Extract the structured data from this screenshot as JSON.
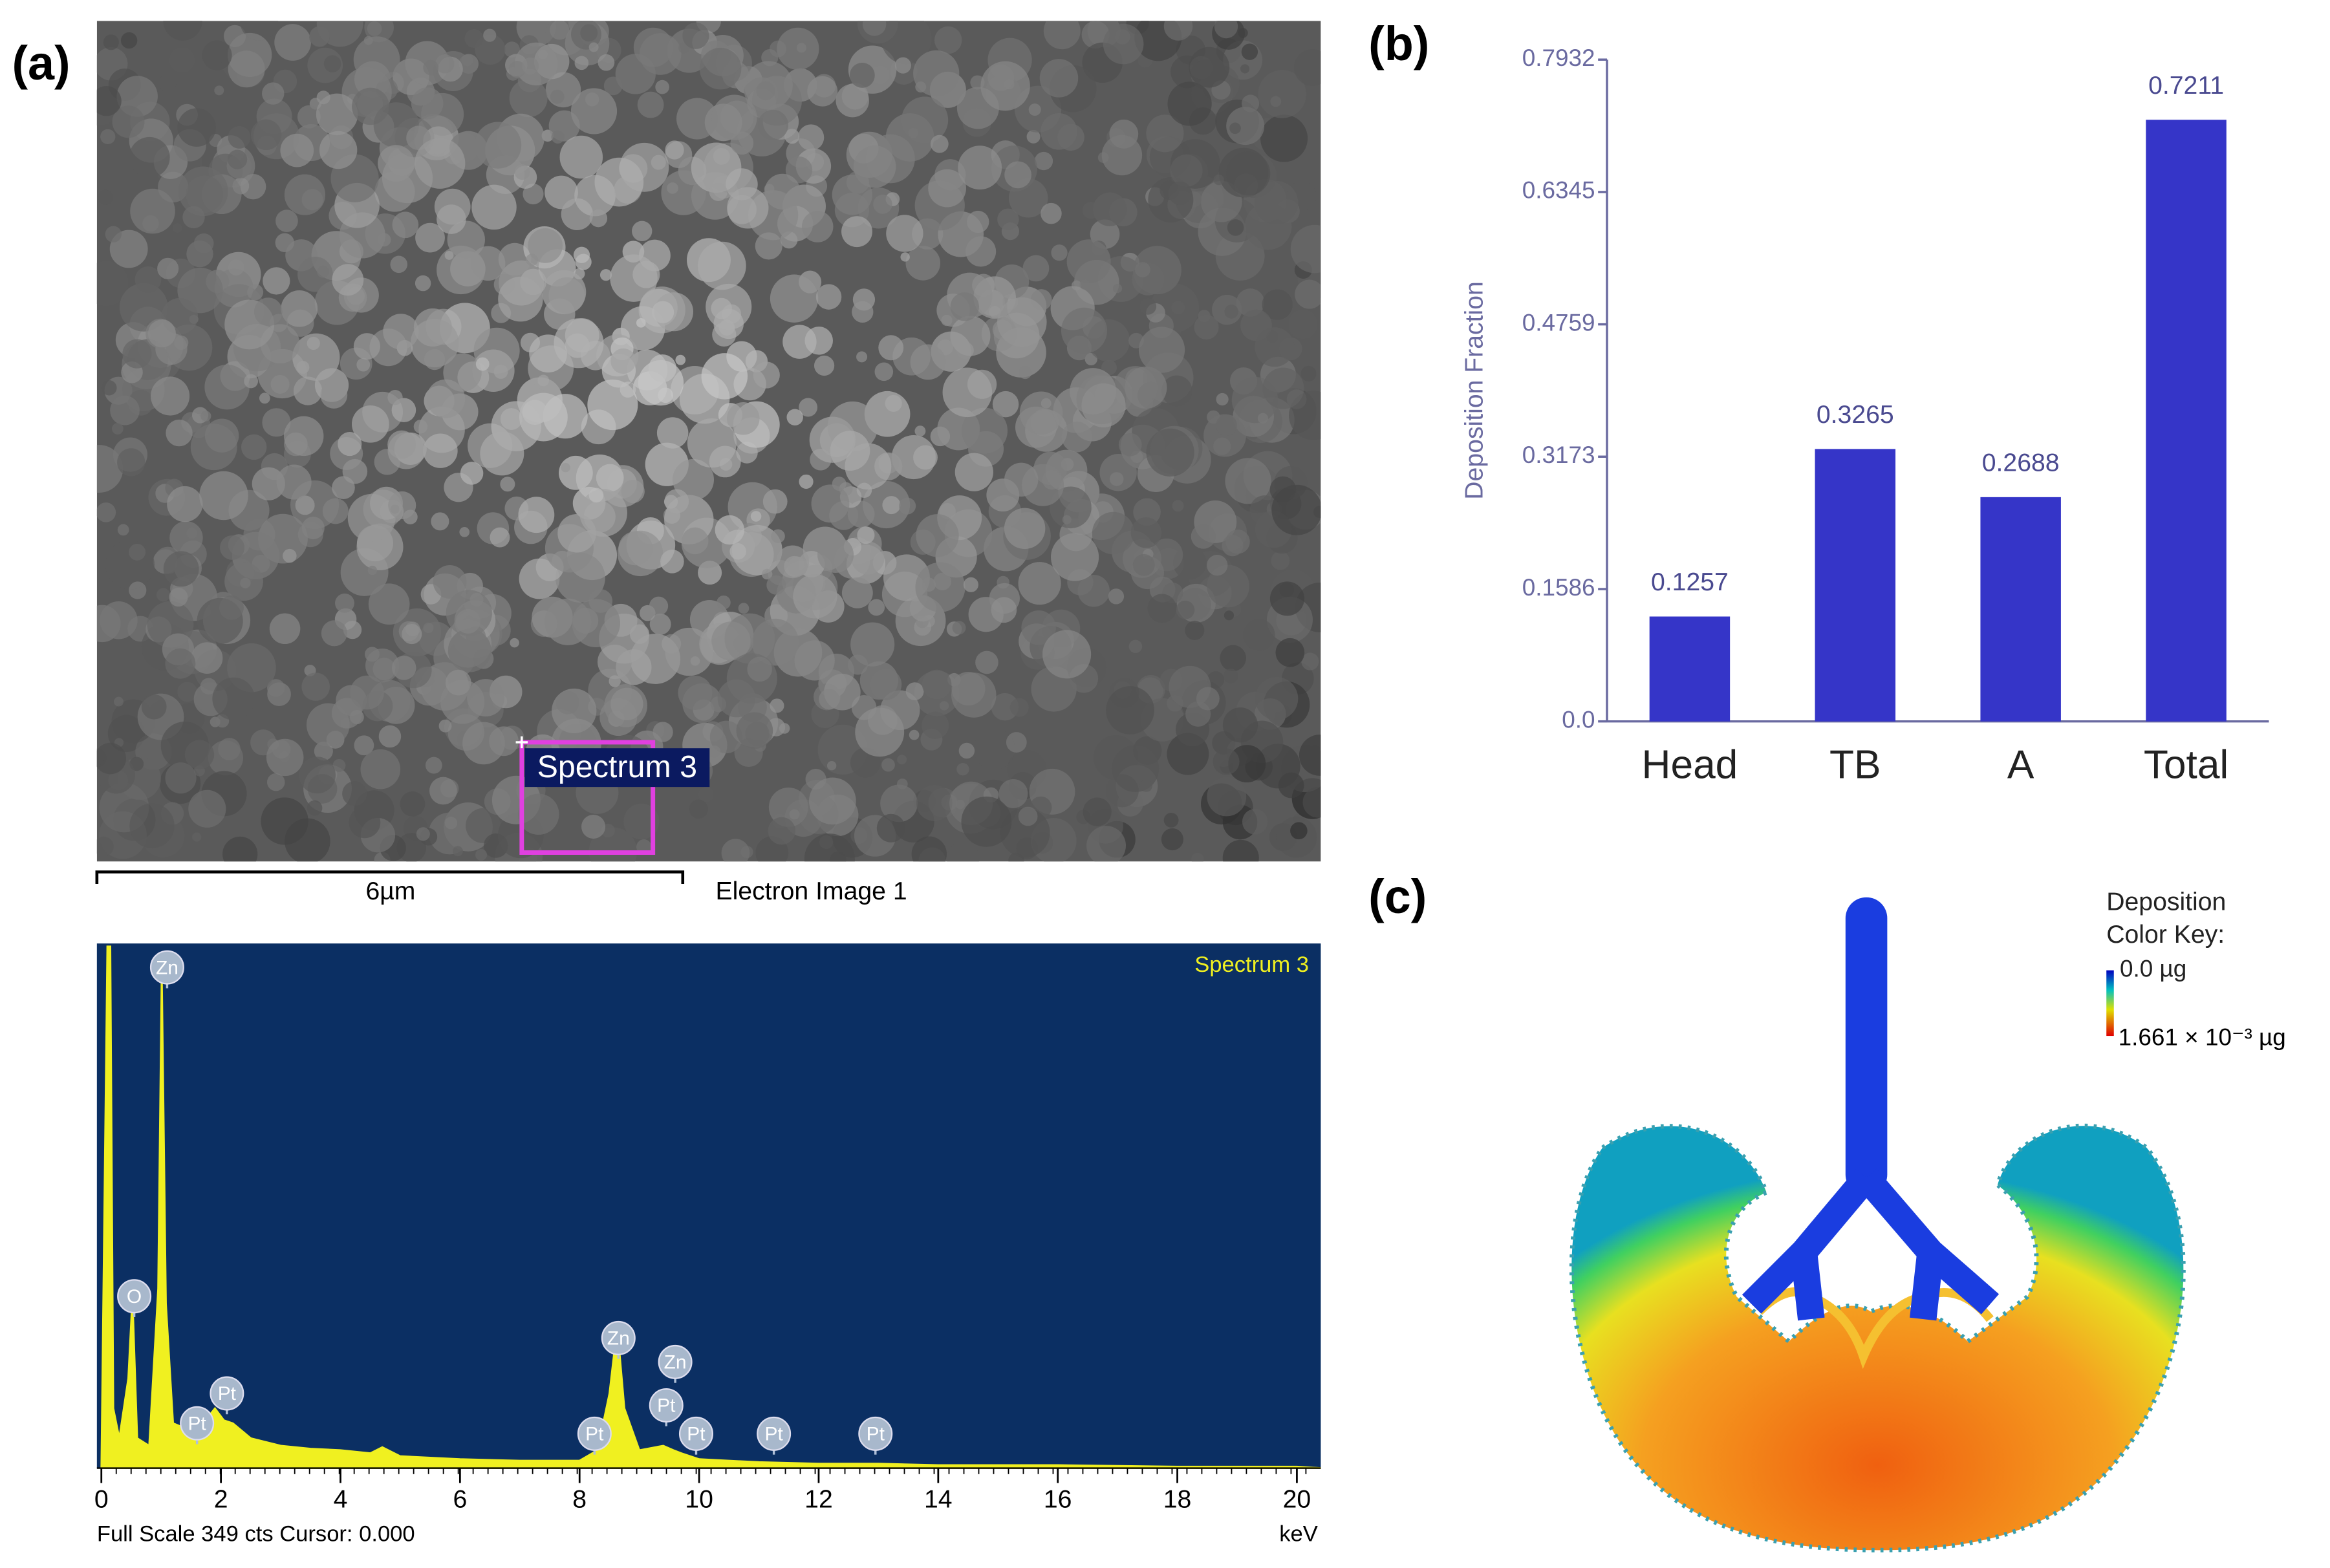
{
  "panel_labels": [
    "(a)",
    "(b)",
    "(c)"
  ],
  "sem_image": {
    "spectrum_label": "Spectrum 3",
    "scale_bar": "6µm",
    "caption": "Electron Image 1"
  },
  "color_key": {
    "title_lines": [
      "Deposition",
      "Color Key:"
    ],
    "min_label": "0.0 µg",
    "max_label": "1.661 × 10⁻³ µg"
  },
  "chart_data": [
    {
      "type": "bar",
      "ylabel": "Deposition Fraction",
      "categories": [
        "Head",
        "TB",
        "A",
        "Total"
      ],
      "values": [
        0.1257,
        0.3265,
        0.2688,
        0.7211
      ],
      "color": "#3535c8",
      "ylim": [
        0,
        0.7932
      ],
      "yticks": [
        {
          "value": 0,
          "label": "0.0"
        },
        0.1586,
        0.3173,
        0.4759,
        0.6345,
        0.7932
      ]
    },
    {
      "type": "line",
      "title": "Spectrum 3",
      "xlabel": "keV",
      "footer": "Full Scale 349 cts Cursor: 0.000",
      "color": "#f0f020",
      "background": "#0b2f63",
      "x": [
        0,
        0.1,
        0.15,
        0.2,
        0.3,
        0.45,
        0.52,
        0.6,
        0.8,
        0.95,
        1.01,
        1.08,
        1.2,
        1.5,
        1.7,
        1.9,
        2.05,
        2.2,
        2.5,
        3,
        3.5,
        4,
        4.5,
        4.7,
        5,
        6,
        7,
        8,
        8.3,
        8.5,
        8.63,
        8.75,
        9,
        9.4,
        9.57,
        9.7,
        10,
        11,
        12,
        13,
        14,
        16,
        18,
        20,
        20.4
      ],
      "values": [
        0,
        349,
        349,
        40,
        20,
        60,
        115,
        20,
        15,
        120,
        335,
        110,
        30,
        25,
        30,
        40,
        32,
        30,
        20,
        15,
        13,
        12,
        10,
        14,
        8,
        6,
        5,
        5,
        12,
        50,
        95,
        40,
        12,
        15,
        12,
        10,
        6,
        4,
        3,
        3,
        2,
        2,
        1,
        1,
        0
      ],
      "xlim": [
        0,
        20.4
      ],
      "ylim": [
        0,
        349
      ],
      "xticks": [
        0,
        2,
        4,
        6,
        8,
        10,
        12,
        14,
        16,
        18,
        20
      ],
      "annotations": [
        {
          "text": "Zn",
          "x": 1.1,
          "y": 335
        },
        {
          "text": "O",
          "x": 0.55,
          "y": 115
        },
        {
          "text": "Pt",
          "x": 2.1,
          "y": 50
        },
        {
          "text": "Pt",
          "x": 1.6,
          "y": 30
        },
        {
          "text": "Zn",
          "x": 8.65,
          "y": 87
        },
        {
          "text": "Zn",
          "x": 9.6,
          "y": 71
        },
        {
          "text": "Pt",
          "x": 9.45,
          "y": 42
        },
        {
          "text": "Pt",
          "x": 8.25,
          "y": 23
        },
        {
          "text": "Pt",
          "x": 9.95,
          "y": 23
        },
        {
          "text": "Pt",
          "x": 11.25,
          "y": 23
        },
        {
          "text": "Pt",
          "x": 12.95,
          "y": 23
        }
      ]
    }
  ]
}
